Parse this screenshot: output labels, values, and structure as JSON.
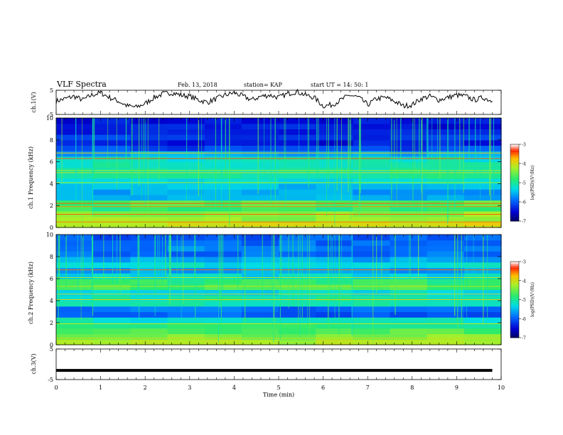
{
  "header": {
    "title": "VLF Spectra",
    "date": "Feb. 13, 2018",
    "station": "station= KAP",
    "start_ut": "start UT = 14: 50: 1"
  },
  "chart_data": [
    {
      "type": "line",
      "name": "ch1-voltage",
      "ylabel": "ch.1(V)",
      "ylim": [
        -5,
        5
      ],
      "yticks": [
        "5",
        "-5"
      ],
      "xlim": [
        0,
        10
      ],
      "x": [
        0,
        0.2,
        0.4,
        0.6,
        0.8,
        1.0,
        1.2,
        1.4,
        1.6,
        1.8,
        2.0,
        2.2,
        2.4,
        2.6,
        2.8,
        3.0,
        3.2,
        3.4,
        3.6,
        3.8,
        4.0,
        4.2,
        4.4,
        4.6,
        4.8,
        5.0,
        5.2,
        5.4,
        5.6,
        5.8,
        6.0,
        6.2,
        6.4,
        6.6,
        6.8,
        7.0,
        7.2,
        7.4,
        7.6,
        7.8,
        8.0,
        8.2,
        8.4,
        8.6,
        8.8,
        9.0,
        9.2,
        9.4,
        9.6,
        9.8
      ],
      "values": [
        0.5,
        1.5,
        2.5,
        1.0,
        3.0,
        4.0,
        2.0,
        0.5,
        -1.5,
        -2.0,
        -0.5,
        2.0,
        3.5,
        4.0,
        3.0,
        2.5,
        1.0,
        0.0,
        1.5,
        3.0,
        4.0,
        2.5,
        1.0,
        2.5,
        3.0,
        2.0,
        3.5,
        4.5,
        3.0,
        2.0,
        -1.5,
        -1.0,
        1.0,
        3.0,
        2.0,
        -1.0,
        1.5,
        2.0,
        0.5,
        -1.5,
        -1.0,
        1.5,
        2.5,
        1.0,
        2.0,
        3.0,
        2.5,
        1.0,
        2.0,
        0.5
      ]
    },
    {
      "type": "heatmap",
      "name": "ch1-spectrogram",
      "ylabel": "ch.1 Frequency (kHz)",
      "ylim": [
        0,
        10
      ],
      "yticks": [
        "0",
        "2",
        "4",
        "6",
        "8",
        "10"
      ],
      "xlim": [
        0,
        10
      ],
      "colorbar": {
        "label": "log(PSD)(V²/Hz)",
        "range": [
          -7,
          -3
        ],
        "ticks": [
          "-3",
          "-4",
          "-5",
          "-6",
          "-7"
        ]
      },
      "freq_kHz": [
        0.25,
        0.75,
        1.25,
        1.75,
        2.25,
        2.75,
        3.25,
        3.75,
        4.25,
        4.75,
        5.25,
        5.75,
        6.25,
        6.75,
        7.25,
        7.75,
        8.25,
        8.75,
        9.25,
        9.75
      ],
      "log_psd_profile": [
        -4.0,
        -4.3,
        -4.3,
        -4.8,
        -4.6,
        -5.6,
        -5.6,
        -5.5,
        -5.3,
        -5.0,
        -5.0,
        -5.1,
        -5.2,
        -5.6,
        -6.1,
        -6.4,
        -6.2,
        -6.3,
        -6.4,
        -6.4
      ],
      "bright_lines_kHz": [
        0.1,
        0.5,
        1.2,
        1.9,
        2.2,
        4.1,
        5.0,
        5.2,
        6.3,
        6.8
      ]
    },
    {
      "type": "heatmap",
      "name": "ch2-spectrogram",
      "ylabel": "ch.2 Frequency (kHz)",
      "ylim": [
        0,
        10
      ],
      "yticks": [
        "0",
        "2",
        "4",
        "6",
        "8",
        "10"
      ],
      "xlim": [
        0,
        10
      ],
      "colorbar": {
        "label": "log(PSD)(V²/Hz)",
        "range": [
          -7,
          -3
        ],
        "ticks": [
          "-3",
          "-4",
          "-5",
          "-6",
          "-7"
        ]
      },
      "freq_kHz": [
        0.25,
        0.75,
        1.25,
        1.75,
        2.25,
        2.75,
        3.25,
        3.75,
        4.25,
        4.75,
        5.25,
        5.75,
        6.25,
        6.75,
        7.25,
        7.75,
        8.25,
        8.75,
        9.25,
        9.75
      ],
      "log_psd_profile": [
        -4.2,
        -4.4,
        -4.6,
        -4.9,
        -5.2,
        -6.0,
        -5.9,
        -5.0,
        -5.1,
        -5.3,
        -4.7,
        -4.8,
        -5.3,
        -5.6,
        -5.3,
        -5.6,
        -5.9,
        -5.8,
        -5.9,
        -6.0
      ],
      "bright_lines_kHz": [
        0.2,
        0.6,
        1.9,
        4.1,
        4.6,
        5.3,
        6.1,
        6.8
      ]
    },
    {
      "type": "line",
      "name": "ch3-voltage",
      "ylabel": "ch.3(V)",
      "ylim": [
        -5,
        5
      ],
      "yticks": [
        "5",
        "-5"
      ],
      "xlim": [
        0,
        10
      ],
      "x": [
        0,
        9.8
      ],
      "values": [
        -2,
        -2
      ]
    }
  ],
  "xaxis": {
    "label": "Time (min)",
    "ticks": [
      "0",
      "1",
      "2",
      "3",
      "4",
      "5",
      "6",
      "7",
      "8",
      "9",
      "10"
    ]
  }
}
